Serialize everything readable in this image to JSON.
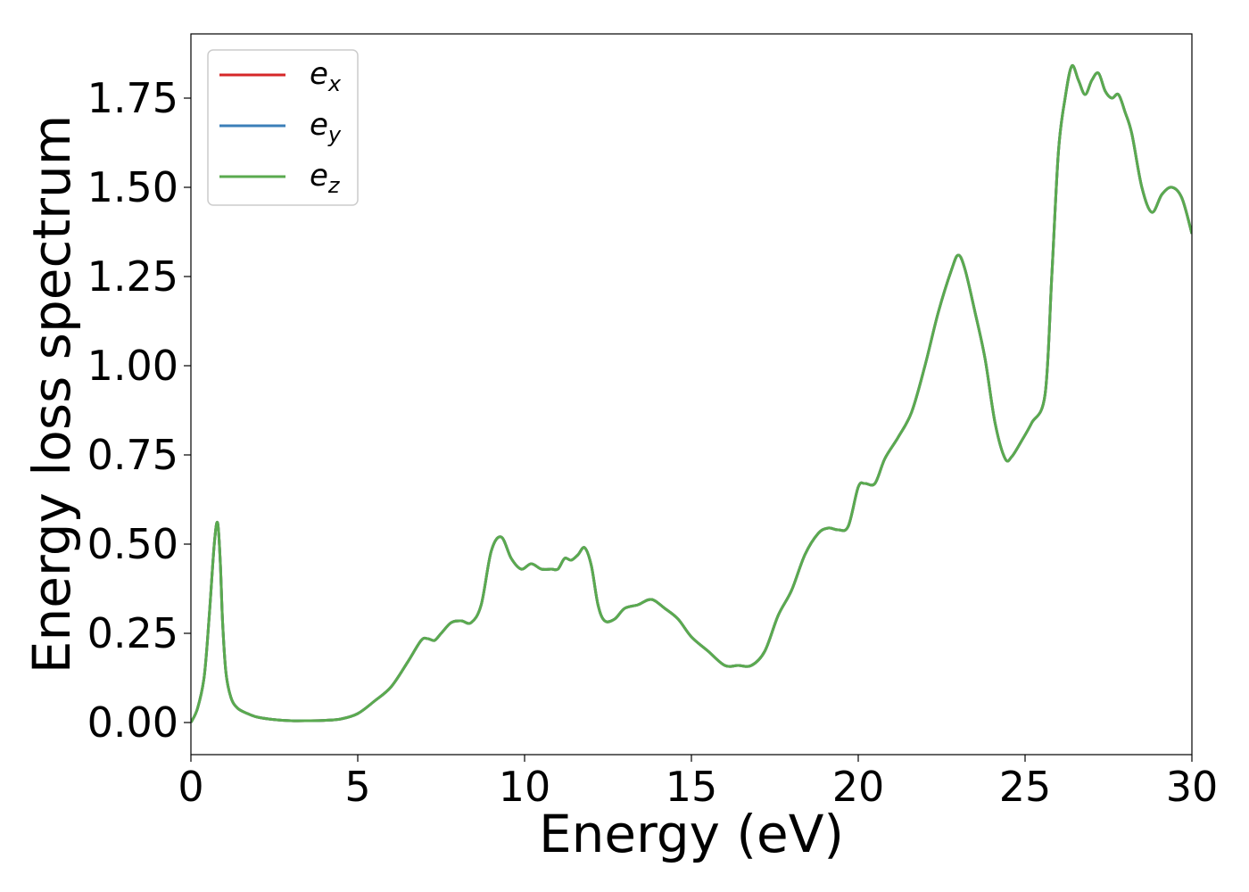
{
  "chart_data": {
    "type": "line",
    "title": "",
    "xlabel": "Energy (eV)",
    "ylabel": "Energy loss spectrum",
    "xlim": [
      0,
      30
    ],
    "ylim": [
      -0.09,
      1.93
    ],
    "xticks": [
      0,
      5,
      10,
      15,
      20,
      25,
      30
    ],
    "yticks": [
      0.0,
      0.25,
      0.5,
      0.75,
      1.0,
      1.25,
      1.5,
      1.75
    ],
    "xtick_labels": [
      "0",
      "5",
      "10",
      "15",
      "20",
      "25",
      "30"
    ],
    "ytick_labels": [
      "0.00",
      "0.25",
      "0.50",
      "0.75",
      "1.00",
      "1.25",
      "1.50",
      "1.75"
    ],
    "grid": false,
    "legend": {
      "position": "top-left"
    },
    "x": [
      0,
      0.2,
      0.4,
      0.55,
      0.7,
      0.8,
      0.88,
      0.95,
      1.05,
      1.2,
      1.4,
      1.7,
      2.0,
      2.5,
      3.0,
      3.5,
      4.0,
      4.5,
      5.0,
      5.5,
      6.0,
      6.5,
      6.9,
      7.1,
      7.3,
      7.5,
      7.8,
      8.1,
      8.4,
      8.7,
      9.0,
      9.3,
      9.6,
      9.9,
      10.2,
      10.5,
      10.8,
      11.0,
      11.2,
      11.4,
      11.6,
      11.8,
      12.0,
      12.2,
      12.4,
      12.7,
      13.0,
      13.4,
      13.8,
      14.2,
      14.6,
      15.0,
      15.5,
      16.0,
      16.4,
      16.8,
      17.2,
      17.6,
      18.0,
      18.4,
      18.8,
      19.1,
      19.4,
      19.7,
      20.0,
      20.2,
      20.5,
      20.8,
      21.2,
      21.6,
      22.0,
      22.4,
      22.8,
      23.0,
      23.2,
      23.5,
      23.8,
      24.1,
      24.4,
      24.6,
      24.9,
      25.2,
      25.6,
      25.8,
      26.0,
      26.2,
      26.4,
      26.6,
      26.8,
      27.0,
      27.2,
      27.4,
      27.6,
      27.8,
      28.0,
      28.2,
      28.5,
      28.8,
      29.1,
      29.4,
      29.7,
      30.0
    ],
    "series": [
      {
        "name": "e_x",
        "label_base": "e",
        "label_sub": "x",
        "color": "#d62728"
      },
      {
        "name": "e_y",
        "label_base": "e",
        "label_sub": "y",
        "color": "#3b7fb8"
      },
      {
        "name": "e_z",
        "label_base": "e",
        "label_sub": "z",
        "color": "#5aaa4f"
      }
    ],
    "y": [
      0.0,
      0.04,
      0.13,
      0.3,
      0.5,
      0.56,
      0.45,
      0.28,
      0.14,
      0.07,
      0.04,
      0.025,
      0.015,
      0.008,
      0.005,
      0.005,
      0.006,
      0.01,
      0.025,
      0.06,
      0.1,
      0.17,
      0.23,
      0.235,
      0.23,
      0.25,
      0.28,
      0.285,
      0.28,
      0.33,
      0.48,
      0.52,
      0.46,
      0.43,
      0.445,
      0.43,
      0.43,
      0.43,
      0.46,
      0.455,
      0.47,
      0.49,
      0.44,
      0.33,
      0.285,
      0.29,
      0.32,
      0.33,
      0.345,
      0.32,
      0.29,
      0.24,
      0.2,
      0.16,
      0.16,
      0.16,
      0.2,
      0.3,
      0.37,
      0.47,
      0.53,
      0.545,
      0.54,
      0.55,
      0.66,
      0.67,
      0.67,
      0.74,
      0.8,
      0.87,
      1.0,
      1.15,
      1.27,
      1.31,
      1.27,
      1.15,
      1.02,
      0.84,
      0.74,
      0.745,
      0.79,
      0.84,
      0.92,
      1.25,
      1.6,
      1.75,
      1.84,
      1.8,
      1.76,
      1.8,
      1.82,
      1.77,
      1.75,
      1.76,
      1.71,
      1.65,
      1.5,
      1.43,
      1.48,
      1.5,
      1.47,
      1.37
    ]
  }
}
